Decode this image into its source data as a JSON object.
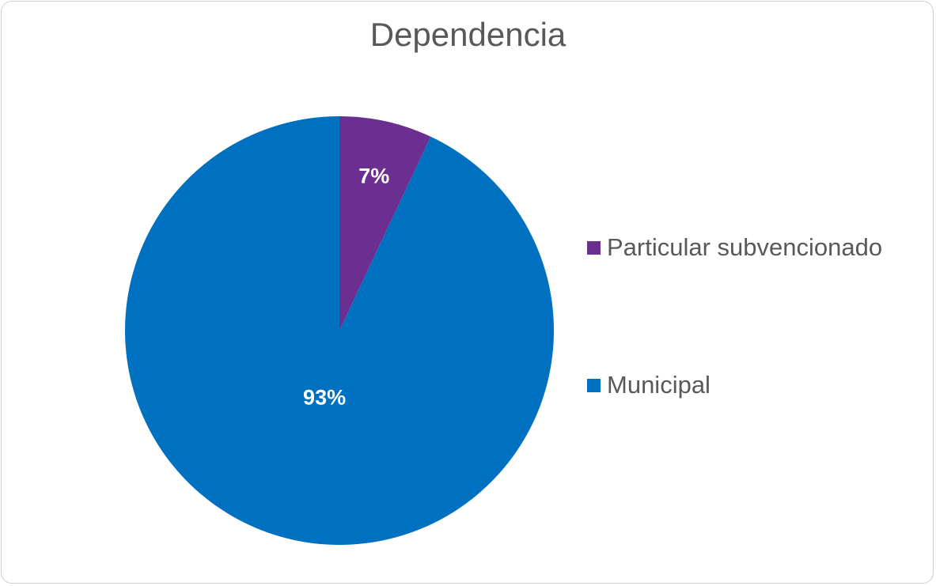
{
  "chart_data": {
    "type": "pie",
    "title": "Dependencia",
    "categories": [
      "Particular subvencionado",
      "Municipal"
    ],
    "values": [
      7,
      93
    ],
    "data_labels": [
      "7%",
      "93%"
    ],
    "colors": [
      "#6b2f91",
      "#0070c0"
    ],
    "legend_position": "right",
    "start_angle": "12 o'clock, clockwise"
  }
}
